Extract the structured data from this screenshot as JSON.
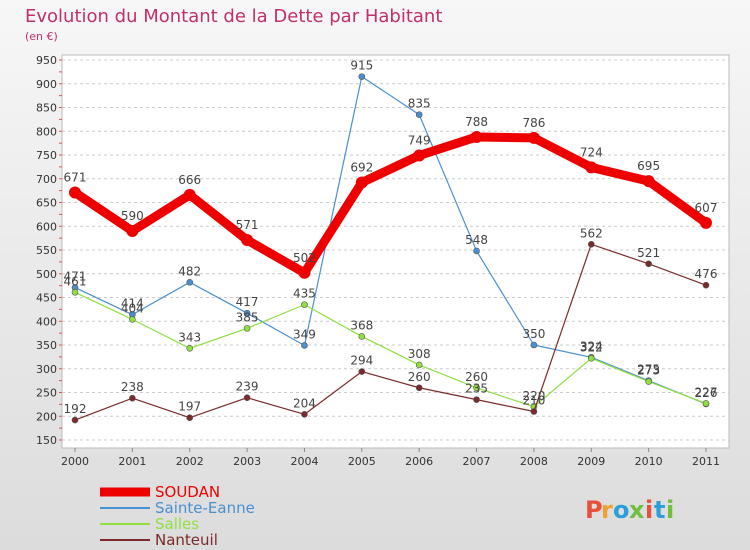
{
  "chart_data": {
    "type": "line",
    "title": "Evolution du Montant de la Dette par Habitant",
    "subtitle": "(en €)",
    "categories": [
      "2000",
      "2001",
      "2002",
      "2003",
      "2004",
      "2005",
      "2006",
      "2007",
      "2008",
      "2009",
      "2010",
      "2011"
    ],
    "ylim": [
      150,
      950
    ],
    "yticks": [
      150,
      200,
      250,
      300,
      350,
      400,
      450,
      500,
      550,
      600,
      650,
      700,
      750,
      800,
      850,
      900,
      950
    ],
    "grid": "horizontal dashed",
    "legend_position": "bottom-left",
    "series": [
      {
        "name": "SOUDAN",
        "color": "#ee0000",
        "values": [
          671,
          590,
          666,
          571,
          502,
          692,
          749,
          788,
          786,
          724,
          695,
          607
        ]
      },
      {
        "name": "Sainte-Eanne",
        "color": "#4a90d0",
        "values": [
          471,
          414,
          482,
          417,
          349,
          915,
          835,
          548,
          350,
          324,
          275,
          226
        ]
      },
      {
        "name": "Salles",
        "color": "#90e040",
        "values": [
          461,
          404,
          343,
          385,
          435,
          368,
          308,
          260,
          220,
          322,
          273,
          227
        ]
      },
      {
        "name": "Nanteuil",
        "color": "#7a2a2a",
        "values": [
          192,
          238,
          197,
          239,
          204,
          294,
          260,
          235,
          210,
          562,
          521,
          476
        ]
      }
    ]
  },
  "watermark": "Proxiti"
}
